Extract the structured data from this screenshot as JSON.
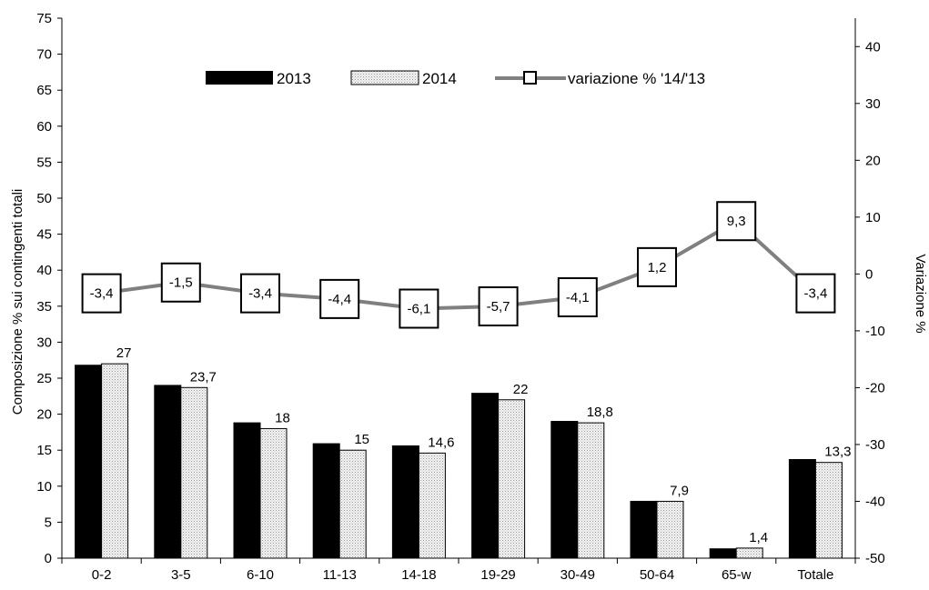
{
  "chart_data": {
    "type": "bar",
    "categories": [
      "0-2",
      "3-5",
      "6-10",
      "11-13",
      "14-18",
      "19-29",
      "30-49",
      "50-64",
      "65-w",
      "Totale"
    ],
    "series": [
      {
        "name": "2013",
        "kind": "bar",
        "axis": "left",
        "color": "#000000",
        "values": [
          26.8,
          24.0,
          18.8,
          15.9,
          15.6,
          22.9,
          19.0,
          7.9,
          1.3,
          13.7
        ]
      },
      {
        "name": "2014",
        "kind": "bar",
        "axis": "left",
        "color": "#d9d9d9",
        "values": [
          27,
          23.7,
          18,
          15,
          14.6,
          22,
          18.8,
          7.9,
          1.4,
          13.3
        ],
        "labels": [
          "27",
          "23,7",
          "18",
          "15",
          "14,6",
          "22",
          "18,8",
          "7,9",
          "1,4",
          "13,3"
        ]
      },
      {
        "name": "variazione % '14/'13",
        "kind": "line",
        "axis": "right",
        "color": "#808080",
        "values": [
          -3.4,
          -1.5,
          -3.4,
          -4.4,
          -6.1,
          -5.7,
          -4.1,
          1.2,
          9.3,
          -3.4
        ],
        "labels": [
          "-3,4",
          "-1,5",
          "-3,4",
          "-4,4",
          "-6,1",
          "-5,7",
          "-4,1",
          "1,2",
          "9,3",
          "-3,4"
        ]
      }
    ],
    "ylabel": "Composizione % sui contingenti totali",
    "y2label": "Variazione %",
    "ylim": [
      0,
      75
    ],
    "y2lim": [
      -50,
      45
    ],
    "yticks": [
      "0",
      "5",
      "10",
      "15",
      "20",
      "25",
      "30",
      "35",
      "40",
      "45",
      "50",
      "55",
      "60",
      "65",
      "70",
      "75"
    ],
    "y2ticks": [
      "-50",
      "-40",
      "-30",
      "-20",
      "-10",
      "0",
      "10",
      "20",
      "30",
      "40"
    ],
    "legend": {
      "position": "top",
      "entries": [
        "2013",
        "2014",
        "variazione % '14/'13"
      ]
    },
    "grid": false
  }
}
